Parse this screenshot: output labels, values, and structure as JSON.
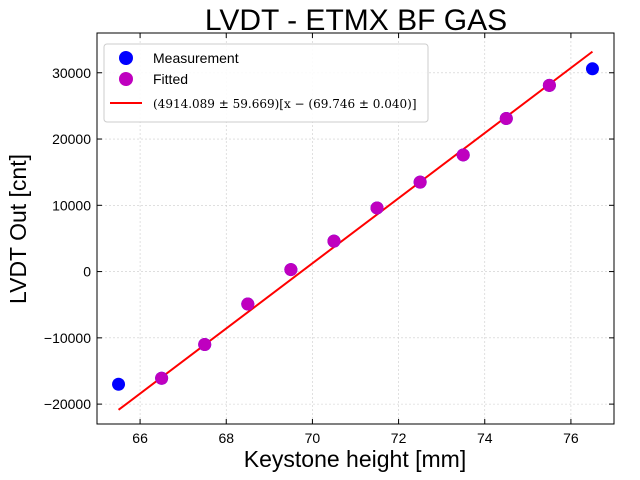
{
  "chart_data": {
    "type": "scatter",
    "title": "LVDT - ETMX BF GAS",
    "xlabel": "Keystone height [mm]",
    "ylabel": "LVDT Out [cnt]",
    "xlim": [
      65.0,
      77.0
    ],
    "ylim": [
      -23000,
      36000
    ],
    "xticks": [
      66,
      68,
      70,
      72,
      74,
      76
    ],
    "yticks": [
      -20000,
      -10000,
      0,
      10000,
      20000,
      30000
    ],
    "xtick_labels": [
      "66",
      "68",
      "70",
      "72",
      "74",
      "76"
    ],
    "ytick_labels": [
      "−20000",
      "−10000",
      "0",
      "10000",
      "20000",
      "30000"
    ],
    "grid": true,
    "legend_position": "top-left",
    "series": [
      {
        "name": "Measurement",
        "kind": "scatter",
        "color": "#0000ff",
        "x": [
          65.5,
          66.5,
          67.5,
          68.5,
          69.5,
          70.5,
          71.5,
          72.5,
          73.5,
          74.5,
          75.5,
          76.5
        ],
        "y": [
          -17000,
          -16100,
          -11000,
          -4900,
          300,
          4600,
          9600,
          13500,
          17600,
          23100,
          28100,
          30600
        ]
      },
      {
        "name": "Fitted",
        "kind": "scatter",
        "color": "#bf00bf",
        "x": [
          66.5,
          67.5,
          68.5,
          69.5,
          70.5,
          71.5,
          72.5,
          73.5,
          74.5,
          75.5
        ],
        "y": [
          -16100,
          -11000,
          -4900,
          300,
          4600,
          9600,
          13500,
          17600,
          23100,
          28100
        ]
      },
      {
        "name": "(4914.089 ± 59.669)[x − (69.746 ± 0.040)]",
        "kind": "line",
        "color": "#ff0000",
        "x": [
          65.5,
          76.5
        ],
        "y": [
          -20865,
          33190
        ]
      }
    ]
  }
}
